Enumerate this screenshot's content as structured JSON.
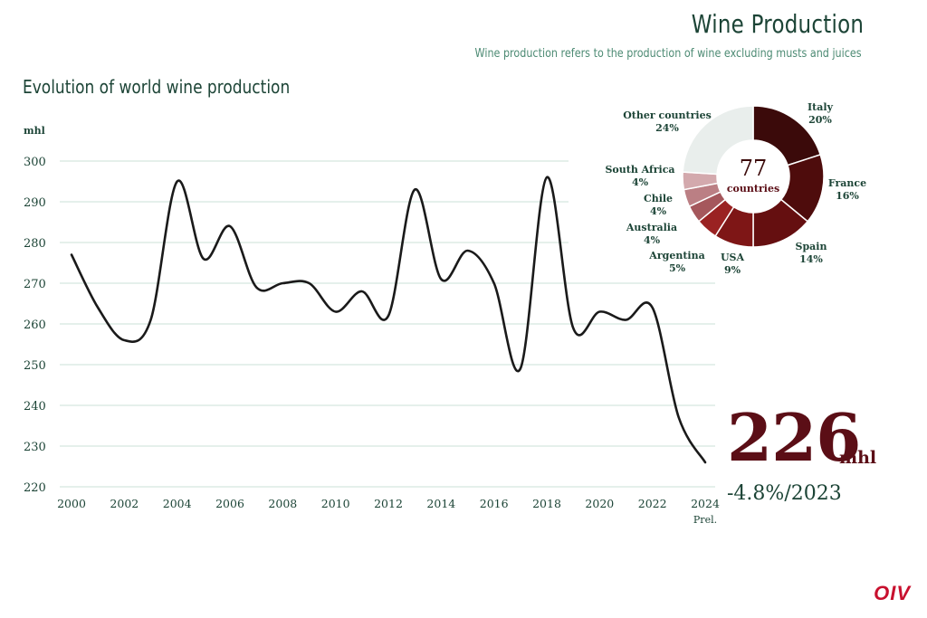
{
  "header": {
    "title": "Wine Production",
    "subtitle": "Wine production refers to the production of wine excluding musts and juices"
  },
  "chart_data": [
    {
      "type": "line",
      "title": "Evolution of world wine production",
      "ylabel": "mhl",
      "xlabel": "",
      "ylim": [
        220,
        300
      ],
      "yticks": [
        220,
        230,
        240,
        250,
        260,
        270,
        280,
        290,
        300
      ],
      "xlim": [
        2000,
        2024
      ],
      "xtick_labels": [
        {
          "x": 2000,
          "label": "2000"
        },
        {
          "x": 2002,
          "label": "2002"
        },
        {
          "x": 2004,
          "label": "2004"
        },
        {
          "x": 2006,
          "label": "2006"
        },
        {
          "x": 2008,
          "label": "2008"
        },
        {
          "x": 2010,
          "label": "2010"
        },
        {
          "x": 2012,
          "label": "2012"
        },
        {
          "x": 2014,
          "label": "2014"
        },
        {
          "x": 2016,
          "label": "2016"
        },
        {
          "x": 2018,
          "label": "2018"
        },
        {
          "x": 2020,
          "label": "2020"
        },
        {
          "x": 2022,
          "label": "2022"
        },
        {
          "x": 2024,
          "label": "2024",
          "sublabel": "Prel."
        }
      ],
      "grid": true,
      "x": [
        2000,
        2001,
        2002,
        2003,
        2004,
        2005,
        2006,
        2007,
        2008,
        2009,
        2010,
        2011,
        2012,
        2013,
        2014,
        2015,
        2016,
        2017,
        2018,
        2019,
        2020,
        2021,
        2022,
        2023,
        2024
      ],
      "series": [
        {
          "values": [
            277,
            264,
            256,
            261,
            295,
            276,
            284,
            269,
            270,
            270,
            263,
            268,
            262,
            293,
            271,
            278,
            270,
            249,
            296,
            259,
            263,
            261,
            264,
            237,
            226
          ],
          "color": "#1a1a1a"
        }
      ],
      "highlight": {
        "value": "226",
        "unit": "mhl",
        "change": "-4.8%/2023"
      }
    },
    {
      "type": "pie",
      "style": "donut",
      "center_value": "77",
      "center_label": "countries",
      "slices": [
        {
          "label": "Italy",
          "value": 20,
          "display": "20%",
          "color": "#3b0a0a"
        },
        {
          "label": "France",
          "value": 16,
          "display": "16%",
          "color": "#4e0c0c"
        },
        {
          "label": "Spain",
          "value": 14,
          "display": "14%",
          "color": "#650f10"
        },
        {
          "label": "USA",
          "value": 9,
          "display": "9%",
          "color": "#7e1616"
        },
        {
          "label": "Argentina",
          "value": 5,
          "display": "5%",
          "color": "#9a2222"
        },
        {
          "label": "Australia",
          "value": 4,
          "display": "4%",
          "color": "#a5575c"
        },
        {
          "label": "Chile",
          "value": 4,
          "display": "4%",
          "color": "#bb7f84"
        },
        {
          "label": "South Africa",
          "value": 4,
          "display": "4%",
          "color": "#d3a9ad"
        },
        {
          "label": "Other countries",
          "value": 24,
          "display": "24%",
          "color": "#e9eeec"
        }
      ]
    }
  ],
  "logo": "OIV"
}
